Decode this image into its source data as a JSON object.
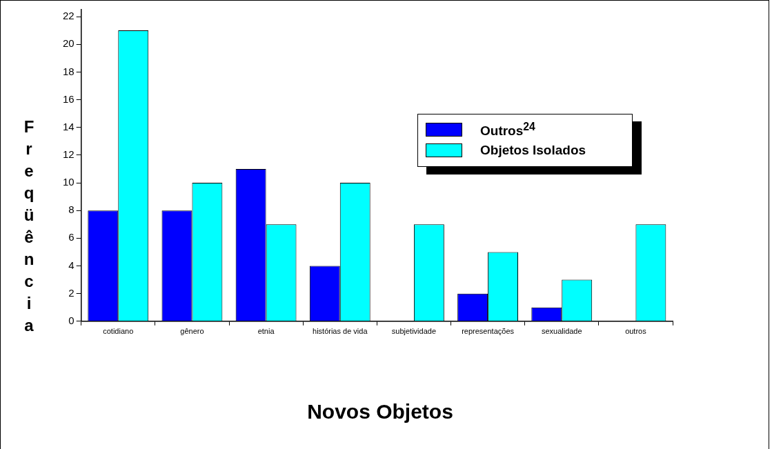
{
  "chart_data": {
    "type": "bar",
    "xlabel": "Novos Objetos",
    "ylabel": "Freqüência",
    "categories": [
      "cotidiano",
      "gênero",
      "etnia",
      "histórias de vida",
      "subjetividade",
      "representações",
      "sexualidade",
      "outros"
    ],
    "series": [
      {
        "name": "Outros$^{24}$",
        "color": "#0000ff",
        "values": [
          8,
          8,
          11,
          4,
          0,
          2,
          1,
          0
        ]
      },
      {
        "name": "Objetos Isolados",
        "color": "#00ffff",
        "values": [
          21,
          10,
          7,
          10,
          7,
          5,
          3,
          7
        ]
      }
    ],
    "ylim": [
      0,
      22.5
    ],
    "yticks": [
      0,
      2,
      4,
      6,
      8,
      10,
      12,
      14,
      16,
      18,
      20,
      22
    ],
    "grid": false,
    "legend": "top right"
  }
}
